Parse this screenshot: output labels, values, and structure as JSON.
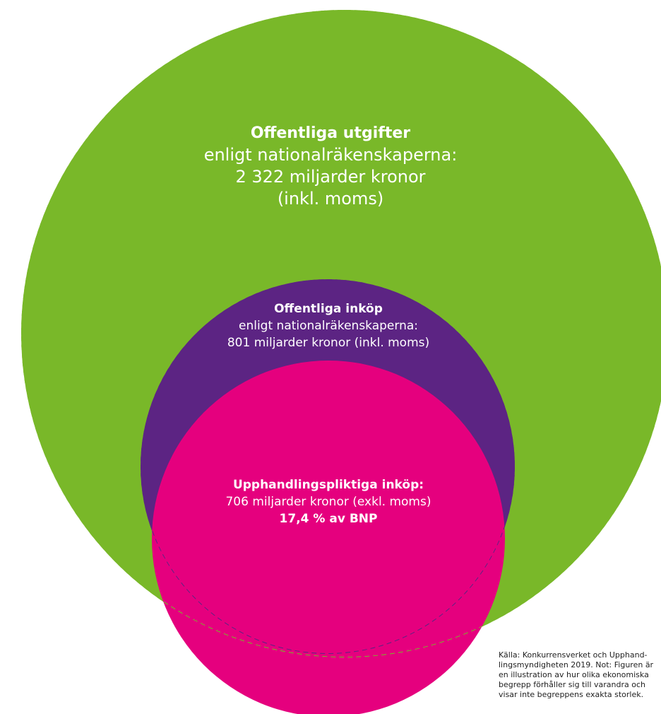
{
  "colors": {
    "outer": "#79b829",
    "middle": "#5c2483",
    "inner": "#e5007e",
    "dash_purple": "#5c2483",
    "dash_green": "#79b829",
    "text_light": "#ffffff",
    "text_dark": "#222222"
  },
  "outer_circle": {
    "title": "Offentliga utgifter",
    "line1": "enligt nationalräkenskaperna:",
    "line2": "2 322 miljarder kronor",
    "line3": "(inkl. moms)"
  },
  "middle_circle": {
    "title": "Offentliga inköp",
    "line1": "enligt nationalräkenskaperna:",
    "line2": "801 miljarder kronor (inkl. moms)"
  },
  "inner_circle": {
    "title": "Upphandlingspliktiga inköp:",
    "line1": "706 miljarder kronor (exkl. moms)",
    "line2": "17,4 % av BNP"
  },
  "source_note": {
    "line1": "Källa: Konkurrensverket och Upphand-",
    "line2": "lingsmyndigheten 2019. Not: Figuren är",
    "line3": "en illustration av hur olika ekonomiska",
    "line4": "begrepp förhåller sig till varandra och",
    "line5": "visar inte begreppens exakta storlek."
  }
}
